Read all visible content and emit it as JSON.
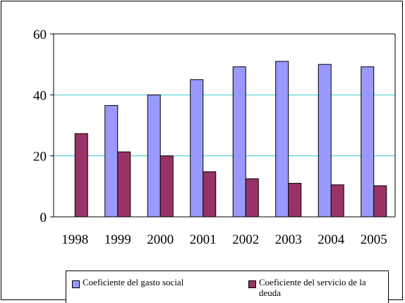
{
  "chart_data": {
    "type": "bar",
    "categories": [
      "1998",
      "1999",
      "2000",
      "2001",
      "2002",
      "2003",
      "2004",
      "2005"
    ],
    "series": [
      {
        "name": "Coeficiente del gasto social",
        "color": "#9999ff",
        "values": [
          null,
          36.5,
          40,
          45,
          49.2,
          51,
          50,
          49.2
        ]
      },
      {
        "name": "Coeficiente del servicio de la deuda",
        "color": "#993366",
        "values": [
          27.3,
          21.3,
          20,
          14.8,
          12.5,
          11,
          10.5,
          10.2
        ]
      }
    ],
    "ylim": [
      0,
      60
    ],
    "yticks": [
      "0",
      "20",
      "40",
      "60"
    ],
    "gridlines": true,
    "gridline_color": "#33cccc",
    "legend_position": "bottom",
    "title": "",
    "xlabel": "",
    "ylabel": ""
  }
}
